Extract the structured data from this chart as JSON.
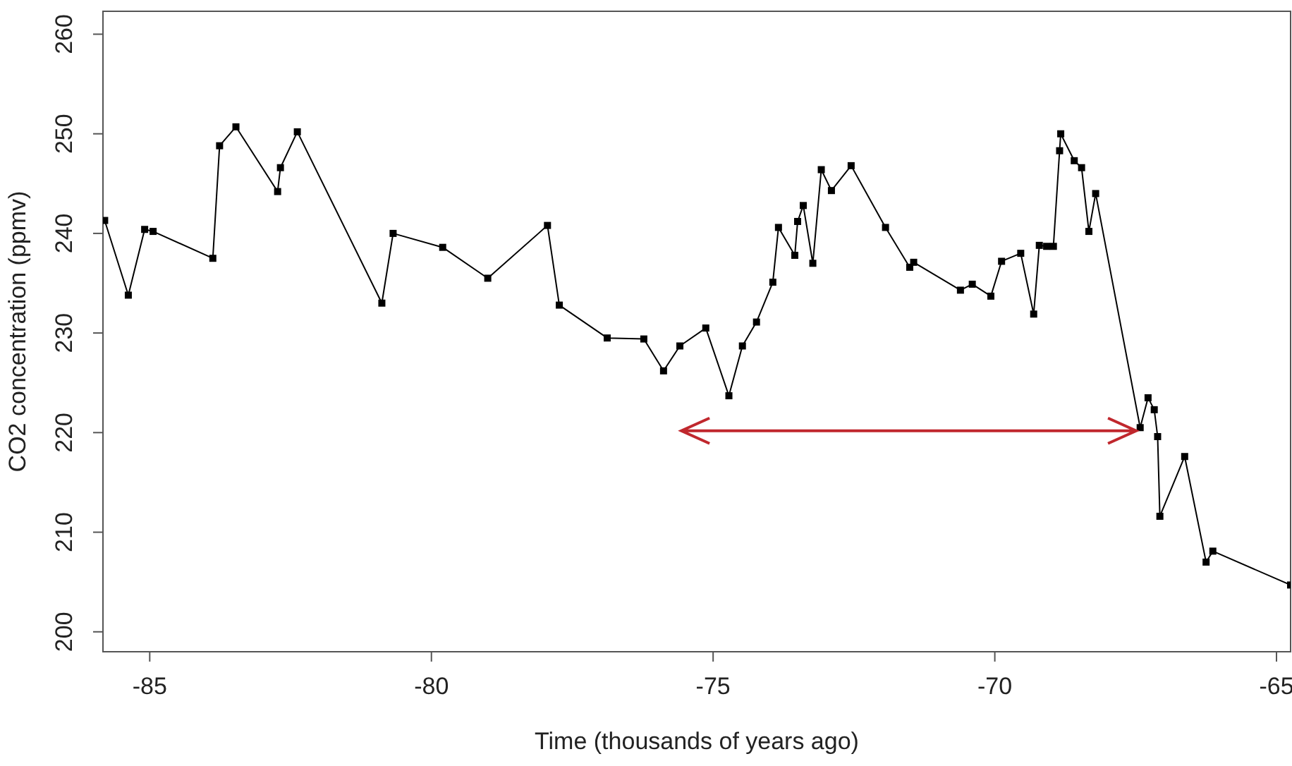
{
  "chart_data": {
    "type": "line",
    "xlabel": "Time (thousands of years ago)",
    "ylabel": "CO2 concentration (ppmv)",
    "xlim": [
      -85.83,
      -64.75
    ],
    "xticks": [
      -85,
      -80,
      -75,
      -70,
      -65
    ],
    "ylim": [
      198,
      262.3
    ],
    "yticks": [
      200,
      210,
      220,
      230,
      240,
      250,
      260
    ],
    "grid": false,
    "marker": "square",
    "line_style": "solid",
    "series": [
      {
        "color": "#000000",
        "x": [
          -85.8,
          -85.38,
          -85.09,
          -84.94,
          -83.88,
          -83.76,
          -83.47,
          -82.73,
          -82.68,
          -82.38,
          -80.88,
          -80.68,
          -79.8,
          -79.0,
          -77.94,
          -77.73,
          -76.88,
          -76.23,
          -75.88,
          -75.59,
          -75.13,
          -74.72,
          -74.48,
          -74.23,
          -73.94,
          -73.84,
          -73.55,
          -73.5,
          -73.4,
          -73.23,
          -73.08,
          -72.9,
          -72.55,
          -71.94,
          -71.51,
          -71.44,
          -70.61,
          -70.4,
          -70.07,
          -69.88,
          -69.54,
          -69.31,
          -69.21,
          -69.08,
          -68.96,
          -68.85,
          -68.83,
          -68.59,
          -68.46,
          -68.33,
          -68.21,
          -67.42,
          -67.28,
          -67.17,
          -67.11,
          -67.07,
          -66.63,
          -66.25,
          -66.13,
          -64.75
        ],
        "values": [
          241.3,
          233.8,
          240.4,
          240.2,
          237.5,
          248.8,
          250.7,
          244.2,
          246.6,
          250.2,
          233.0,
          240.0,
          238.6,
          235.5,
          240.8,
          232.8,
          229.5,
          229.4,
          226.2,
          228.7,
          230.5,
          223.7,
          228.7,
          231.1,
          235.1,
          240.6,
          237.8,
          241.2,
          242.8,
          237.0,
          246.4,
          244.3,
          246.8,
          240.6,
          236.6,
          237.1,
          234.3,
          234.9,
          233.7,
          237.2,
          238.0,
          231.9,
          238.8,
          238.7,
          238.7,
          248.3,
          250.0,
          247.3,
          246.6,
          240.2,
          244.0,
          220.5,
          223.5,
          222.3,
          219.6,
          211.6,
          217.6,
          207.0,
          208.1,
          204.7
        ]
      }
    ]
  }
}
